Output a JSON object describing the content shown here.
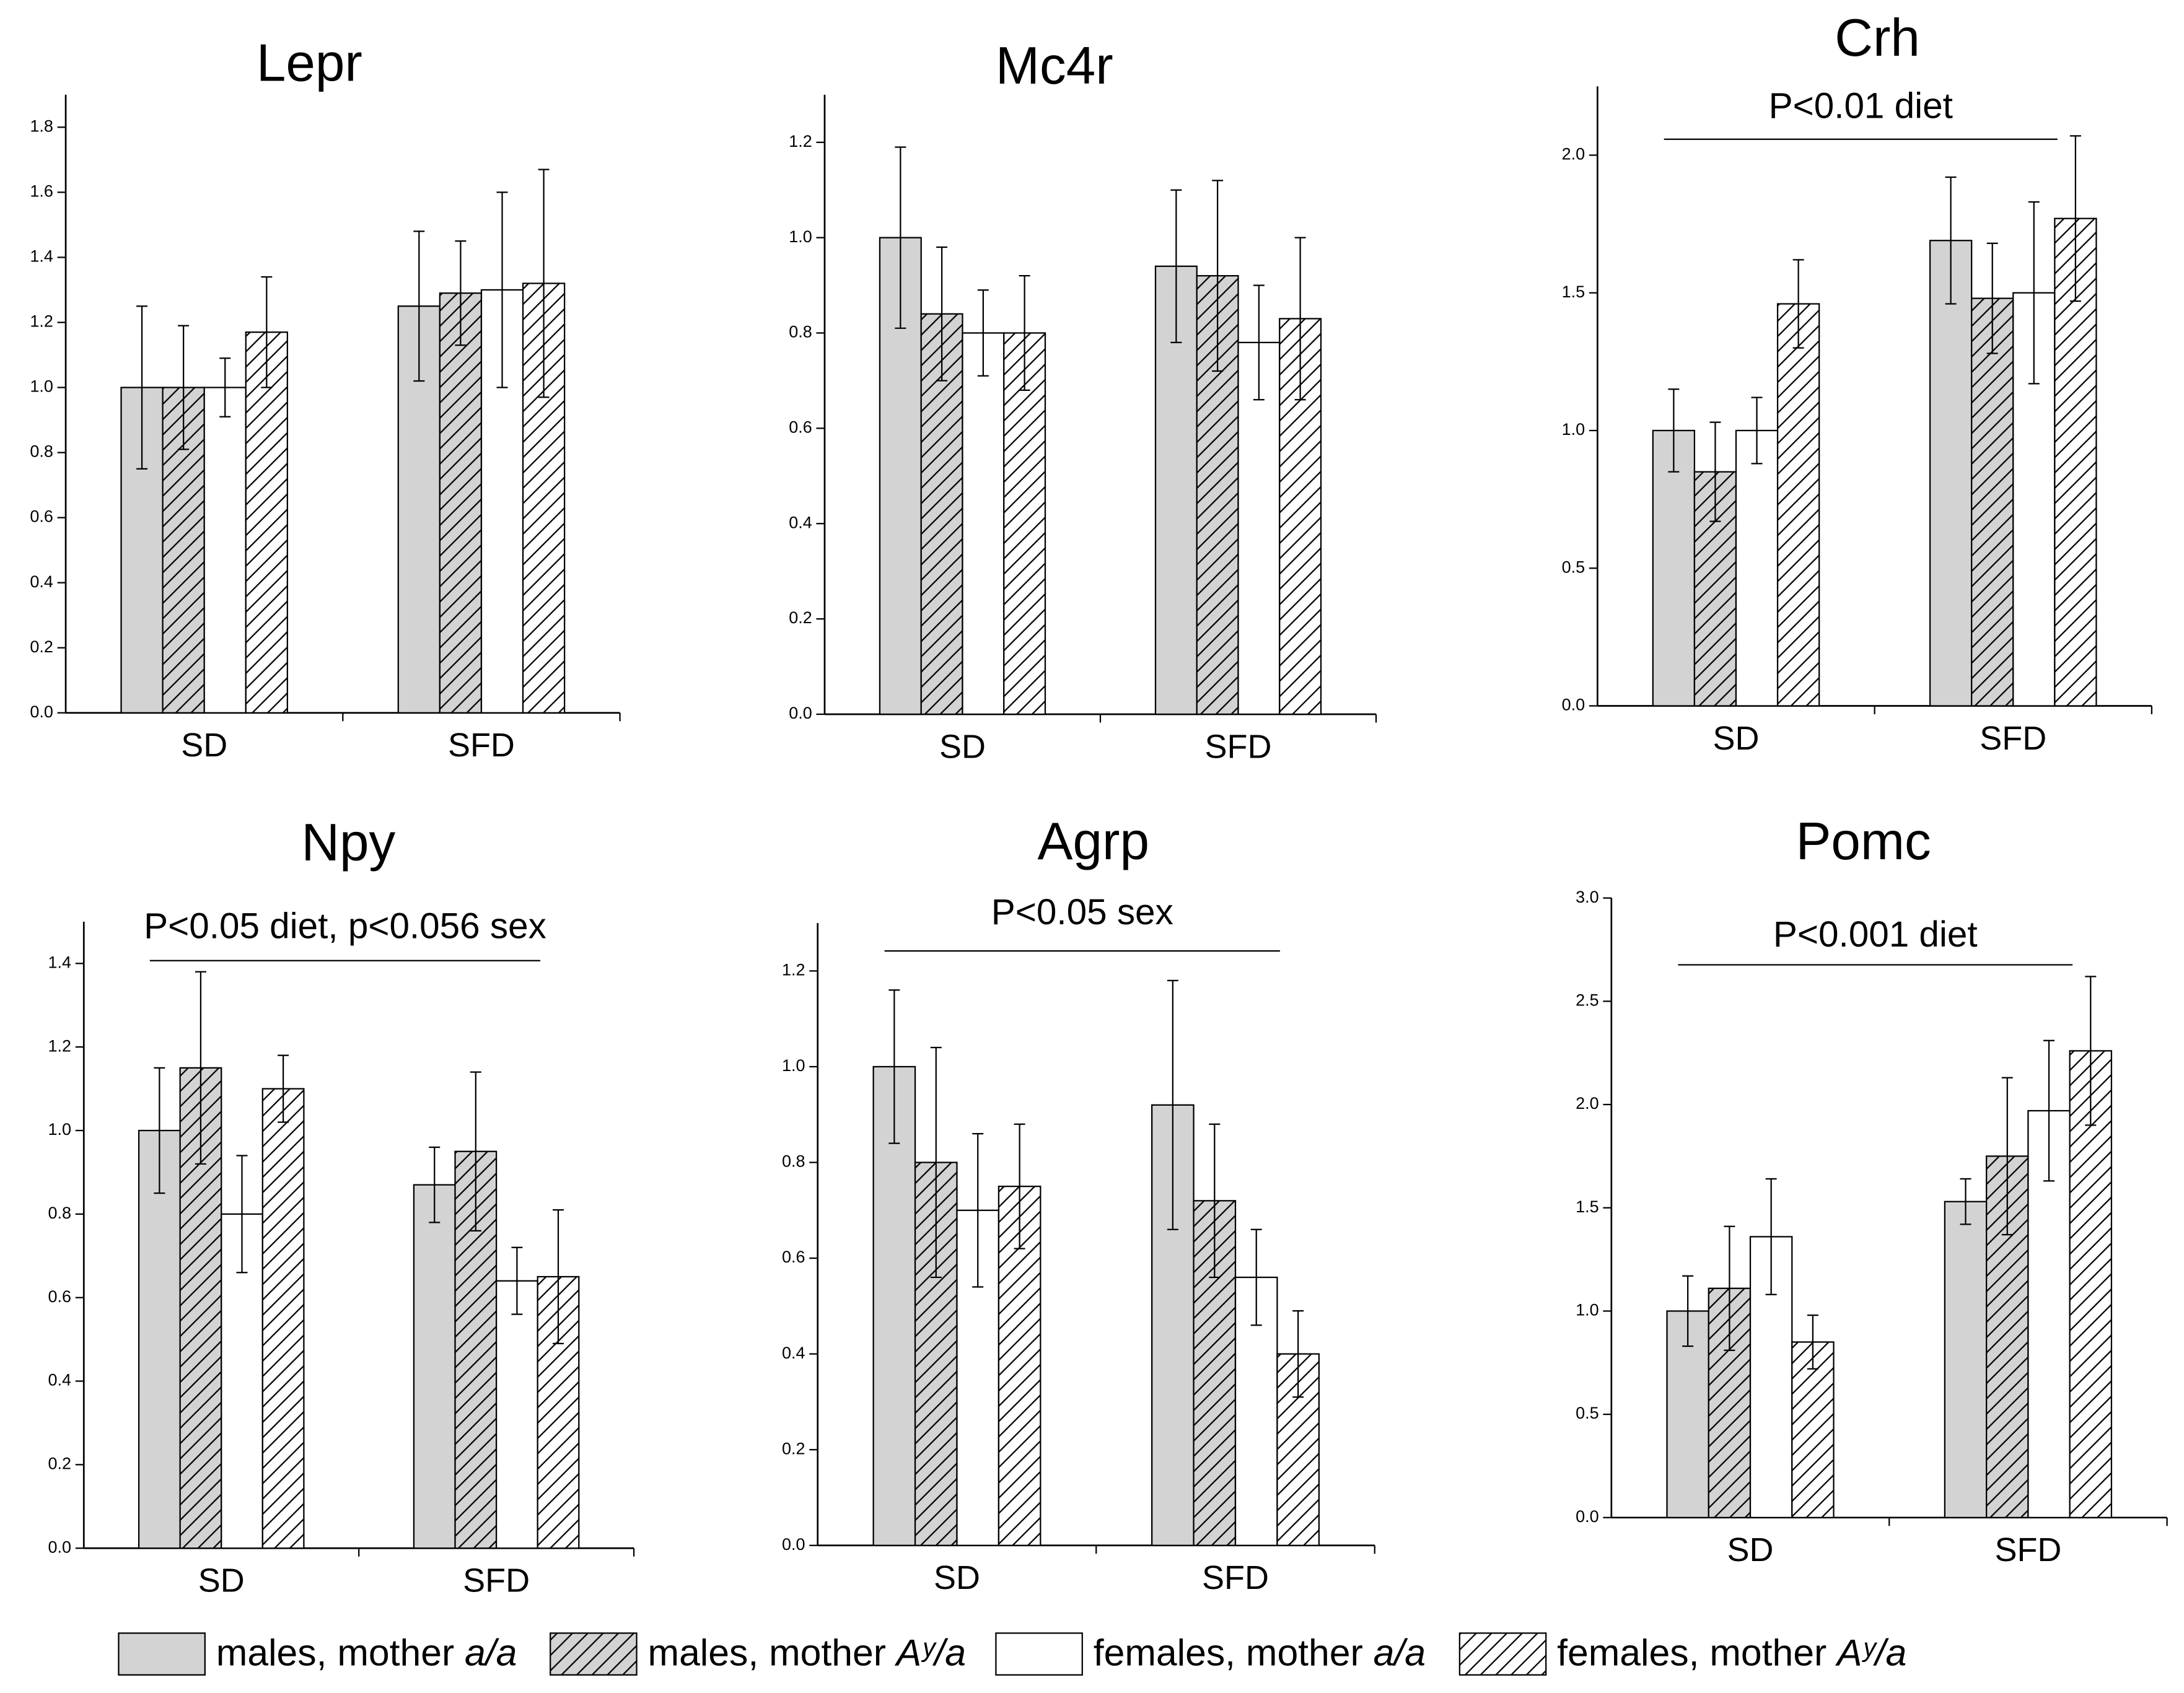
{
  "chart_data": [
    {
      "type": "bar",
      "title": "Lepr",
      "categories": [
        "SD",
        "SFD"
      ],
      "ylim": [
        0,
        1.9
      ],
      "yticks": [
        {
          "value": 0,
          "label": "0.0"
        },
        0.2,
        0.4,
        0.6,
        0.8,
        {
          "value": 1,
          "label": "1.0"
        },
        1.2,
        1.4,
        1.6,
        1.8
      ],
      "series": [
        {
          "name": "males, mother a/a",
          "color": "#d3d3d3",
          "hatch": false,
          "values": [
            1.0,
            1.25
          ],
          "errors": [
            0.25,
            0.23
          ]
        },
        {
          "name": "males, mother Aʸ/a",
          "color": "#d3d3d3",
          "hatch": true,
          "values": [
            1.0,
            1.29
          ],
          "errors": [
            0.19,
            0.16
          ]
        },
        {
          "name": "females, mother a/a",
          "color": "#ffffff",
          "hatch": false,
          "values": [
            1.0,
            1.3
          ],
          "errors": [
            0.09,
            0.3
          ]
        },
        {
          "name": "females, mother Aʸ/a",
          "color": "#ffffff",
          "hatch": true,
          "values": [
            1.17,
            1.32
          ],
          "errors": [
            0.17,
            0.35
          ]
        }
      ]
    },
    {
      "type": "bar",
      "title": "Mc4r",
      "categories": [
        "SD",
        "SFD"
      ],
      "ylim": [
        0,
        1.3
      ],
      "yticks": [
        {
          "value": 0,
          "label": "0.0"
        },
        0.2,
        0.4,
        0.6,
        0.8,
        {
          "value": 1,
          "label": "1.0"
        },
        1.2
      ],
      "series": [
        {
          "name": "males, mother a/a",
          "color": "#d3d3d3",
          "hatch": false,
          "values": [
            1.0,
            0.94
          ],
          "errors": [
            0.19,
            0.16
          ]
        },
        {
          "name": "males, mother Aʸ/a",
          "color": "#d3d3d3",
          "hatch": true,
          "values": [
            0.84,
            0.92
          ],
          "errors": [
            0.14,
            0.2
          ]
        },
        {
          "name": "females, mother a/a",
          "color": "#ffffff",
          "hatch": false,
          "values": [
            0.8,
            0.78
          ],
          "errors": [
            0.09,
            0.12
          ]
        },
        {
          "name": "females, mother Aʸ/a",
          "color": "#ffffff",
          "hatch": true,
          "values": [
            0.8,
            0.83
          ],
          "errors": [
            0.12,
            0.17
          ]
        }
      ]
    },
    {
      "type": "bar",
      "title": "Crh",
      "annotation": "P<0.01 diet",
      "categories": [
        "SD",
        "SFD"
      ],
      "ylim": [
        0,
        2.25
      ],
      "yticks": [
        {
          "value": 0,
          "label": "0.0"
        },
        0.5,
        {
          "value": 1,
          "label": "1.0"
        },
        1.5,
        {
          "value": 2,
          "label": "2.0"
        }
      ],
      "series": [
        {
          "name": "males, mother a/a",
          "color": "#d3d3d3",
          "hatch": false,
          "values": [
            1.0,
            1.69
          ],
          "errors": [
            0.15,
            0.23
          ]
        },
        {
          "name": "males, mother Aʸ/a",
          "color": "#d3d3d3",
          "hatch": true,
          "values": [
            0.85,
            1.48
          ],
          "errors": [
            0.18,
            0.2
          ]
        },
        {
          "name": "females, mother a/a",
          "color": "#ffffff",
          "hatch": false,
          "values": [
            1.0,
            1.5
          ],
          "errors": [
            0.12,
            0.33
          ]
        },
        {
          "name": "females, mother Aʸ/a",
          "color": "#ffffff",
          "hatch": true,
          "values": [
            1.46,
            1.77
          ],
          "errors": [
            0.16,
            0.3
          ]
        }
      ]
    },
    {
      "type": "bar",
      "title": "Npy",
      "annotation": "P<0.05 diet, p<0.056 sex",
      "categories": [
        "SD",
        "SFD"
      ],
      "ylim": [
        0,
        1.5
      ],
      "yticks": [
        {
          "value": 0,
          "label": "0.0"
        },
        0.2,
        0.4,
        0.6,
        0.8,
        {
          "value": 1,
          "label": "1.0"
        },
        1.2,
        1.4
      ],
      "series": [
        {
          "name": "males, mother a/a",
          "color": "#d3d3d3",
          "hatch": false,
          "values": [
            1.0,
            0.87
          ],
          "errors": [
            0.15,
            0.09
          ]
        },
        {
          "name": "males, mother Aʸ/a",
          "color": "#d3d3d3",
          "hatch": true,
          "values": [
            1.15,
            0.95
          ],
          "errors": [
            0.23,
            0.19
          ]
        },
        {
          "name": "females, mother a/a",
          "color": "#ffffff",
          "hatch": false,
          "values": [
            0.8,
            0.64
          ],
          "errors": [
            0.14,
            0.08
          ]
        },
        {
          "name": "females, mother Aʸ/a",
          "color": "#ffffff",
          "hatch": true,
          "values": [
            1.1,
            0.65
          ],
          "errors": [
            0.08,
            0.16
          ]
        }
      ]
    },
    {
      "type": "bar",
      "title": "Agrp",
      "annotation": "P<0.05 sex",
      "categories": [
        "SD",
        "SFD"
      ],
      "ylim": [
        0,
        1.3
      ],
      "yticks": [
        {
          "value": 0,
          "label": "0.0"
        },
        0.2,
        0.4,
        0.6,
        0.8,
        {
          "value": 1,
          "label": "1.0"
        },
        1.2
      ],
      "series": [
        {
          "name": "males, mother a/a",
          "color": "#d3d3d3",
          "hatch": false,
          "values": [
            1.0,
            0.92
          ],
          "errors": [
            0.16,
            0.26
          ]
        },
        {
          "name": "males, mother Aʸ/a",
          "color": "#d3d3d3",
          "hatch": true,
          "values": [
            0.8,
            0.72
          ],
          "errors": [
            0.24,
            0.16
          ]
        },
        {
          "name": "females, mother a/a",
          "color": "#ffffff",
          "hatch": false,
          "values": [
            0.7,
            0.56
          ],
          "errors": [
            0.16,
            0.1
          ]
        },
        {
          "name": "females, mother Aʸ/a",
          "color": "#ffffff",
          "hatch": true,
          "values": [
            0.75,
            0.4
          ],
          "errors": [
            0.13,
            0.09
          ]
        }
      ]
    },
    {
      "type": "bar",
      "title": "Pomc",
      "annotation": "P<0.001 diet",
      "categories": [
        "SD",
        "SFD"
      ],
      "ylim": [
        0,
        3.0
      ],
      "yticks": [
        {
          "value": 0,
          "label": "0.0"
        },
        0.5,
        {
          "value": 1,
          "label": "1.0"
        },
        1.5,
        {
          "value": 2,
          "label": "2.0"
        },
        2.5,
        {
          "value": 3,
          "label": "3.0"
        }
      ],
      "series": [
        {
          "name": "males, mother a/a",
          "color": "#d3d3d3",
          "hatch": false,
          "values": [
            1.0,
            1.53
          ],
          "errors": [
            0.17,
            0.11
          ]
        },
        {
          "name": "males, mother Aʸ/a",
          "color": "#d3d3d3",
          "hatch": true,
          "values": [
            1.11,
            1.75
          ],
          "errors": [
            0.3,
            0.38
          ]
        },
        {
          "name": "females, mother a/a",
          "color": "#ffffff",
          "hatch": false,
          "values": [
            1.36,
            1.97
          ],
          "errors": [
            0.28,
            0.34
          ]
        },
        {
          "name": "females, mother Aʸ/a",
          "color": "#ffffff",
          "hatch": true,
          "values": [
            0.85,
            2.26
          ],
          "errors": [
            0.13,
            0.36
          ]
        }
      ]
    }
  ]
}
